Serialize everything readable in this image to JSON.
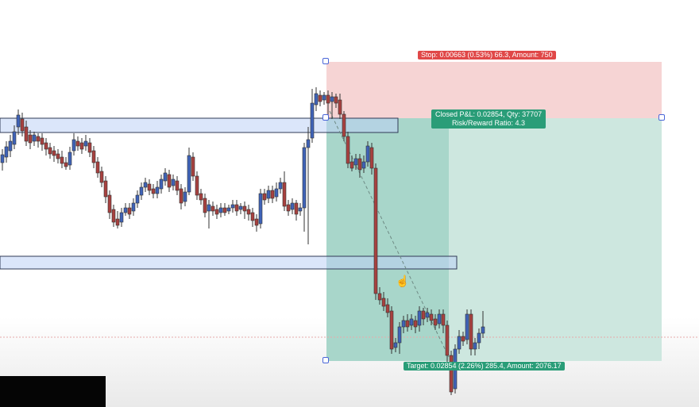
{
  "position": {
    "stop_label": "Stop: 0.00663 (0.53%) 66.3, Amount: 750",
    "pnl_line1": "Closed P&L: 0.02854, Qty: 37707",
    "pnl_line2": "Risk/Reward Ratio: 4.3",
    "target_label": "Target: 0.02854 (2.26%) 285.4, Amount: 2076.17"
  },
  "colors": {
    "bull": "#3f63b8",
    "bear": "#a8413f",
    "stop_zone": "#f5d0d0",
    "target_zone": "#c9e6de",
    "label_red": "#e04848",
    "label_green": "#2a9d78"
  },
  "cursor_icon": "hand-pointer-icon"
}
